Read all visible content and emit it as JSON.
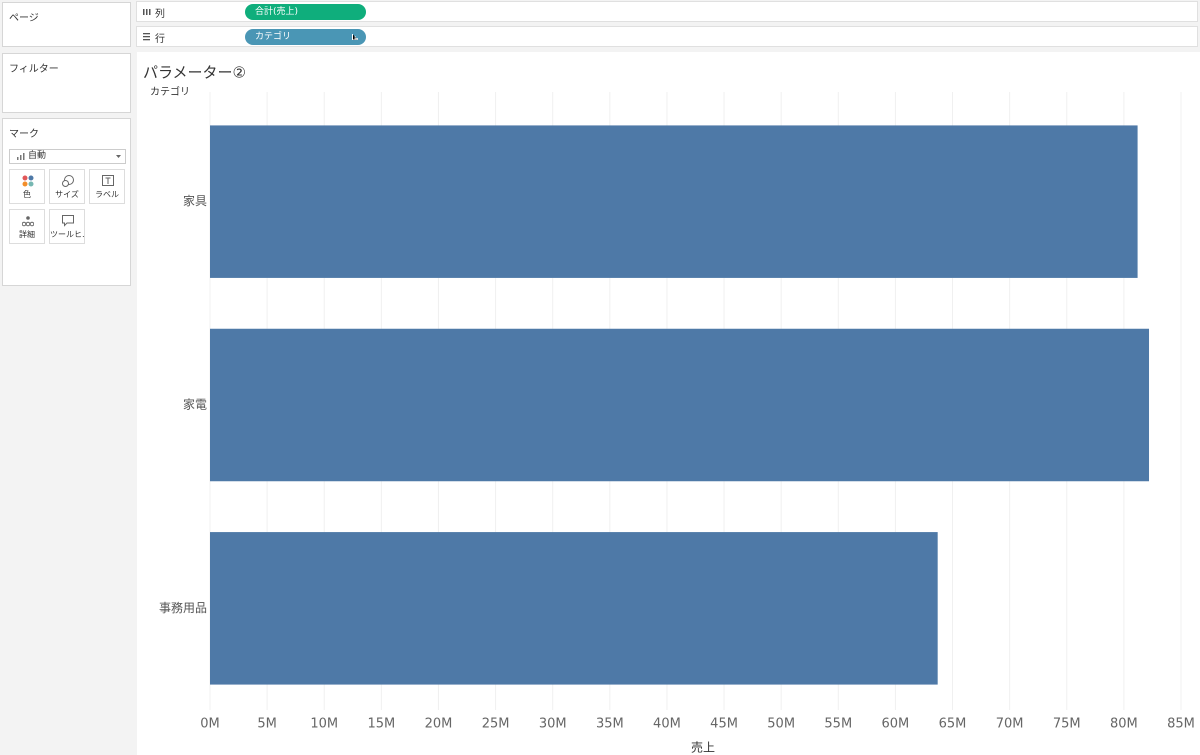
{
  "ui": {
    "panels": {
      "pages": "ページ",
      "filters": "フィルター",
      "marks": {
        "title": "マーク",
        "mark_type": "自動",
        "buttons": [
          "色",
          "サイズ",
          "ラベル",
          "詳細",
          "ツールヒ…"
        ]
      }
    },
    "shelves": {
      "columns": {
        "label": "列",
        "pill": "合計(売上)"
      },
      "rows": {
        "label": "行",
        "pill": "カテゴリ"
      }
    }
  },
  "chart_data": {
    "type": "bar",
    "orientation": "horizontal",
    "title": "パラメーター②",
    "row_header": "カテゴリ",
    "x_label": "売上",
    "categories": [
      "家具",
      "家電",
      "事務用品"
    ],
    "values": [
      81200000,
      82200000,
      63700000
    ],
    "color": "#4e79a7",
    "xlim": [
      0,
      85000000
    ],
    "xticks": [
      {
        "value": 0,
        "label": "0M"
      },
      {
        "value": 5000000,
        "label": "5M"
      },
      {
        "value": 10000000,
        "label": "10M"
      },
      {
        "value": 15000000,
        "label": "15M"
      },
      {
        "value": 20000000,
        "label": "20M"
      },
      {
        "value": 25000000,
        "label": "25M"
      },
      {
        "value": 30000000,
        "label": "30M"
      },
      {
        "value": 35000000,
        "label": "35M"
      },
      {
        "value": 40000000,
        "label": "40M"
      },
      {
        "value": 45000000,
        "label": "45M"
      },
      {
        "value": 50000000,
        "label": "50M"
      },
      {
        "value": 55000000,
        "label": "55M"
      },
      {
        "value": 60000000,
        "label": "60M"
      },
      {
        "value": 65000000,
        "label": "65M"
      },
      {
        "value": 70000000,
        "label": "70M"
      },
      {
        "value": 75000000,
        "label": "75M"
      },
      {
        "value": 80000000,
        "label": "80M"
      },
      {
        "value": 85000000,
        "label": "85M"
      }
    ],
    "grid": true
  }
}
